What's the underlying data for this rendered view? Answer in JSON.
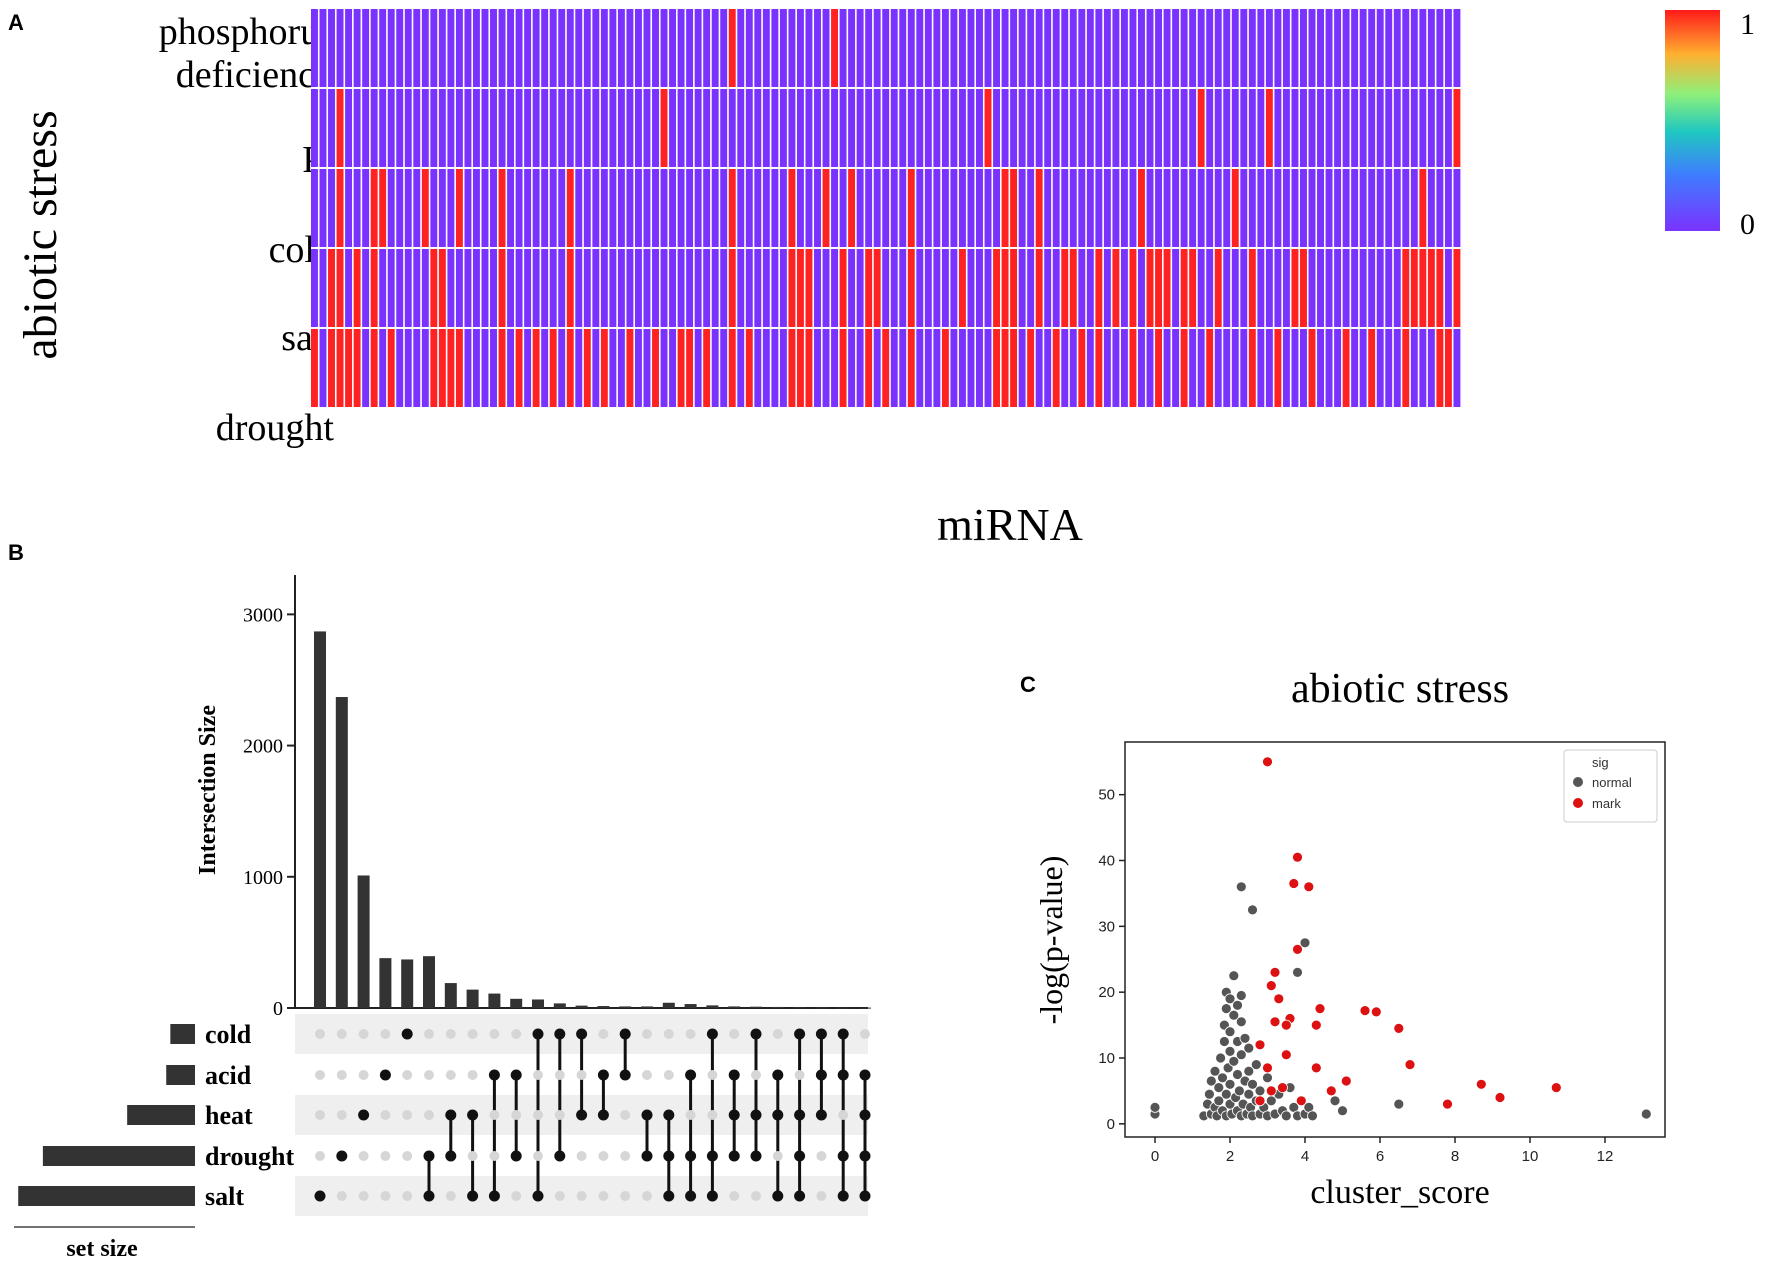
{
  "panels": {
    "a": "A",
    "b": "B",
    "c": "C"
  },
  "colors": {
    "high": "#ff2222",
    "low": "#7a33ff",
    "bar": "#333333",
    "dot_on": "#111111",
    "dot_off": "#d6d6d6",
    "normal": "#555555",
    "mark": "#dd1111"
  },
  "chart_data": [
    {
      "type": "heatmap",
      "id": "panel-A",
      "ylabel": "abiotic stress",
      "xlabel": "miRNA",
      "rows": [
        "phosphorus deficiency",
        "Pi",
        "cold",
        "salt",
        "drought"
      ],
      "row_labels": [
        [
          "phosphorus",
          "deficiency"
        ],
        [
          "Pi"
        ],
        [
          "cold"
        ],
        [
          "salt"
        ],
        [
          "drought"
        ]
      ],
      "n_columns": 135,
      "colorbar": {
        "min": 0,
        "max": 1,
        "min_label": "0",
        "max_label": "1"
      },
      "active_columns": {
        "phosphorus deficiency": [
          49,
          61
        ],
        "Pi": [
          3,
          41,
          79,
          104,
          112,
          134
        ],
        "cold": [
          3,
          7,
          8,
          13,
          17,
          22,
          30,
          49,
          56,
          60,
          63,
          70,
          81,
          82,
          85,
          97,
          108,
          130
        ],
        "salt": [
          2,
          3,
          5,
          7,
          14,
          15,
          22,
          30,
          49,
          56,
          57,
          58,
          62,
          65,
          66,
          70,
          76,
          80,
          81,
          82,
          85,
          88,
          89,
          92,
          94,
          96,
          98,
          99,
          100,
          102,
          103,
          106,
          110,
          115,
          116,
          128,
          129,
          130,
          131,
          132,
          134
        ],
        "drought": [
          0,
          2,
          3,
          4,
          5,
          7,
          9,
          14,
          15,
          16,
          17,
          22,
          24,
          26,
          28,
          30,
          32,
          34,
          37,
          40,
          43,
          44,
          46,
          49,
          51,
          56,
          57,
          58,
          62,
          65,
          67,
          70,
          74,
          80,
          81,
          82,
          84,
          87,
          90,
          92,
          96,
          99,
          102,
          105,
          110,
          113,
          117,
          121,
          124,
          128,
          132,
          133
        ]
      }
    },
    {
      "type": "bar",
      "id": "panel-B-intersections",
      "ylabel": "Intersection Size",
      "ylim": [
        0,
        3300
      ],
      "yticks": [
        0,
        1000,
        2000,
        3000
      ],
      "ytick_labels": [
        "0",
        "1000",
        "2000",
        "3000"
      ],
      "values": [
        2870,
        2370,
        1010,
        380,
        370,
        395,
        190,
        140,
        110,
        70,
        65,
        35,
        18,
        15,
        12,
        12,
        40,
        30,
        20,
        12,
        10,
        8,
        6,
        5,
        4,
        3
      ],
      "sets": [
        "cold",
        "acid",
        "heat",
        "drought",
        "salt"
      ],
      "set_size_label": "set size",
      "set_sizes": [
        120,
        140,
        330,
        740,
        860
      ],
      "memberships": [
        [
          "salt"
        ],
        [
          "drought"
        ],
        [
          "heat"
        ],
        [
          "acid"
        ],
        [
          "cold"
        ],
        [
          "drought",
          "salt"
        ],
        [
          "heat",
          "drought"
        ],
        [
          "heat",
          "salt"
        ],
        [
          "acid",
          "salt"
        ],
        [
          "acid",
          "drought"
        ],
        [
          "cold",
          "salt"
        ],
        [
          "cold",
          "drought"
        ],
        [
          "cold",
          "heat"
        ],
        [
          "acid",
          "heat"
        ],
        [
          "cold",
          "acid"
        ],
        [
          "heat",
          "drought"
        ],
        [
          "heat",
          "drought",
          "salt"
        ],
        [
          "acid",
          "drought",
          "salt"
        ],
        [
          "cold",
          "drought",
          "salt"
        ],
        [
          "acid",
          "heat",
          "drought"
        ],
        [
          "cold",
          "heat",
          "drought"
        ],
        [
          "acid",
          "heat",
          "salt"
        ],
        [
          "cold",
          "heat",
          "drought",
          "salt"
        ],
        [
          "cold",
          "acid",
          "heat"
        ],
        [
          "cold",
          "acid",
          "drought",
          "salt"
        ],
        [
          "acid",
          "heat",
          "drought",
          "salt"
        ]
      ]
    },
    {
      "type": "scatter",
      "id": "panel-C",
      "title": "abiotic stress",
      "xlabel": "cluster_score",
      "ylabel": "-log(p-value)",
      "xlim": [
        -0.8,
        13.6
      ],
      "ylim": [
        -2,
        58
      ],
      "xticks": [
        0,
        2,
        4,
        6,
        8,
        10,
        12
      ],
      "yticks": [
        0,
        10,
        20,
        30,
        40,
        50
      ],
      "legend": {
        "title": "sig",
        "position": "top-right",
        "entries": [
          {
            "label": "normal"
          },
          {
            "label": "mark"
          }
        ]
      },
      "series": [
        {
          "name": "normal",
          "points": [
            [
              0,
              1.5
            ],
            [
              0,
              2.5
            ],
            [
              1.3,
              1.2
            ],
            [
              1.4,
              3.0
            ],
            [
              1.45,
              4.5
            ],
            [
              1.5,
              1.5
            ],
            [
              1.5,
              6.5
            ],
            [
              1.6,
              2.5
            ],
            [
              1.6,
              8.0
            ],
            [
              1.65,
              1.2
            ],
            [
              1.7,
              3.5
            ],
            [
              1.7,
              5.5
            ],
            [
              1.75,
              10.0
            ],
            [
              1.8,
              2.0
            ],
            [
              1.8,
              7.0
            ],
            [
              1.85,
              12.5
            ],
            [
              1.85,
              15.0
            ],
            [
              1.9,
              1.2
            ],
            [
              1.9,
              4.5
            ],
            [
              1.9,
              17.5
            ],
            [
              1.9,
              20.0
            ],
            [
              1.95,
              8.5
            ],
            [
              2.0,
              3.0
            ],
            [
              2.0,
              6.0
            ],
            [
              2.0,
              11.0
            ],
            [
              2.0,
              14.0
            ],
            [
              2.0,
              19.0
            ],
            [
              2.05,
              1.5
            ],
            [
              2.1,
              9.5
            ],
            [
              2.1,
              16.5
            ],
            [
              2.1,
              22.5
            ],
            [
              2.15,
              4.0
            ],
            [
              2.2,
              2.0
            ],
            [
              2.2,
              7.5
            ],
            [
              2.2,
              12.5
            ],
            [
              2.2,
              18.0
            ],
            [
              2.25,
              5.0
            ],
            [
              2.3,
              1.2
            ],
            [
              2.3,
              10.5
            ],
            [
              2.3,
              15.5
            ],
            [
              2.3,
              19.5
            ],
            [
              2.35,
              3.0
            ],
            [
              2.4,
              6.5
            ],
            [
              2.4,
              13.0
            ],
            [
              2.45,
              1.5
            ],
            [
              2.5,
              4.5
            ],
            [
              2.5,
              8.0
            ],
            [
              2.5,
              11.5
            ],
            [
              2.55,
              2.5
            ],
            [
              2.6,
              1.2
            ],
            [
              2.6,
              6.0
            ],
            [
              2.7,
              3.5
            ],
            [
              2.7,
              9.0
            ],
            [
              2.8,
              1.5
            ],
            [
              2.8,
              5.0
            ],
            [
              2.9,
              2.5
            ],
            [
              3.0,
              1.2
            ],
            [
              3.0,
              7.0
            ],
            [
              3.1,
              3.5
            ],
            [
              3.2,
              1.5
            ],
            [
              3.3,
              4.5
            ],
            [
              3.4,
              2.0
            ],
            [
              3.5,
              1.2
            ],
            [
              3.6,
              5.5
            ],
            [
              3.7,
              2.5
            ],
            [
              3.8,
              1.2
            ],
            [
              3.9,
              3.5
            ],
            [
              4.0,
              1.5
            ],
            [
              4.1,
              2.5
            ],
            [
              4.2,
              1.2
            ],
            [
              2.3,
              36.0
            ],
            [
              2.6,
              32.5
            ],
            [
              3.8,
              23.0
            ],
            [
              4.0,
              27.5
            ],
            [
              4.8,
              3.5
            ],
            [
              5.0,
              2.0
            ],
            [
              6.5,
              3.0
            ],
            [
              13.1,
              1.5
            ]
          ]
        },
        {
          "name": "mark",
          "points": [
            [
              3.0,
              55.0
            ],
            [
              3.8,
              40.5
            ],
            [
              3.7,
              36.5
            ],
            [
              4.1,
              36.0
            ],
            [
              3.8,
              26.5
            ],
            [
              3.2,
              23.0
            ],
            [
              3.1,
              21.0
            ],
            [
              3.3,
              19.0
            ],
            [
              4.4,
              17.5
            ],
            [
              5.6,
              17.2
            ],
            [
              5.9,
              17.0
            ],
            [
              3.6,
              16.0
            ],
            [
              3.2,
              15.5
            ],
            [
              3.5,
              15.0
            ],
            [
              4.3,
              15.0
            ],
            [
              6.5,
              14.5
            ],
            [
              2.8,
              12.0
            ],
            [
              3.5,
              10.5
            ],
            [
              6.8,
              9.0
            ],
            [
              4.3,
              8.5
            ],
            [
              3.0,
              8.5
            ],
            [
              5.1,
              6.5
            ],
            [
              8.7,
              6.0
            ],
            [
              3.4,
              5.5
            ],
            [
              3.1,
              5.0
            ],
            [
              4.7,
              5.0
            ],
            [
              10.7,
              5.5
            ],
            [
              9.2,
              4.0
            ],
            [
              2.8,
              3.5
            ],
            [
              3.9,
              3.5
            ],
            [
              7.8,
              3.0
            ]
          ]
        }
      ]
    }
  ]
}
